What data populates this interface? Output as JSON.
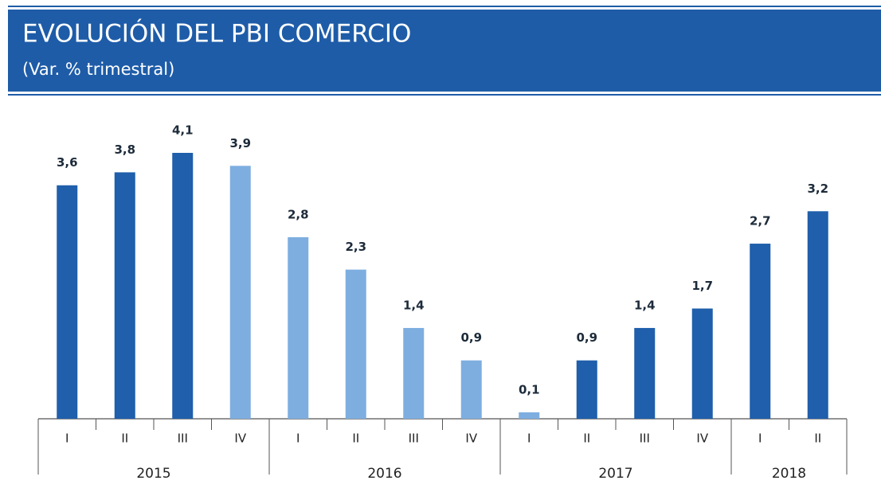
{
  "chart_data": {
    "type": "bar",
    "title": "EVOLUCIÓN DEL PBI COMERCIO",
    "subtitle": "(Var. % trimestral)",
    "groups": [
      {
        "label": "2015",
        "categories": [
          "I",
          "II",
          "III",
          "IV"
        ]
      },
      {
        "label": "2016",
        "categories": [
          "I",
          "II",
          "III",
          "IV"
        ]
      },
      {
        "label": "2017",
        "categories": [
          "I",
          "II",
          "III",
          "IV"
        ]
      },
      {
        "label": "2018",
        "categories": [
          "I",
          "II"
        ]
      }
    ],
    "values": [
      3.6,
      3.8,
      4.1,
      3.9,
      2.8,
      2.3,
      1.4,
      0.9,
      0.1,
      0.9,
      1.4,
      1.7,
      2.7,
      3.2
    ],
    "value_labels": [
      "3,6",
      "3,8",
      "4,1",
      "3,9",
      "2,8",
      "2,3",
      "1,4",
      "0,9",
      "0,1",
      "0,9",
      "1,4",
      "1,7",
      "2,7",
      "3,2"
    ],
    "colors": [
      "#1f5fab",
      "#1f5fab",
      "#1f5fab",
      "#7eaee0",
      "#7eaee0",
      "#7eaee0",
      "#7eaee0",
      "#7eaee0",
      "#7eaee0",
      "#1f5fab",
      "#1f5fab",
      "#1f5fab",
      "#1f5fab",
      "#1f5fab"
    ]
  }
}
